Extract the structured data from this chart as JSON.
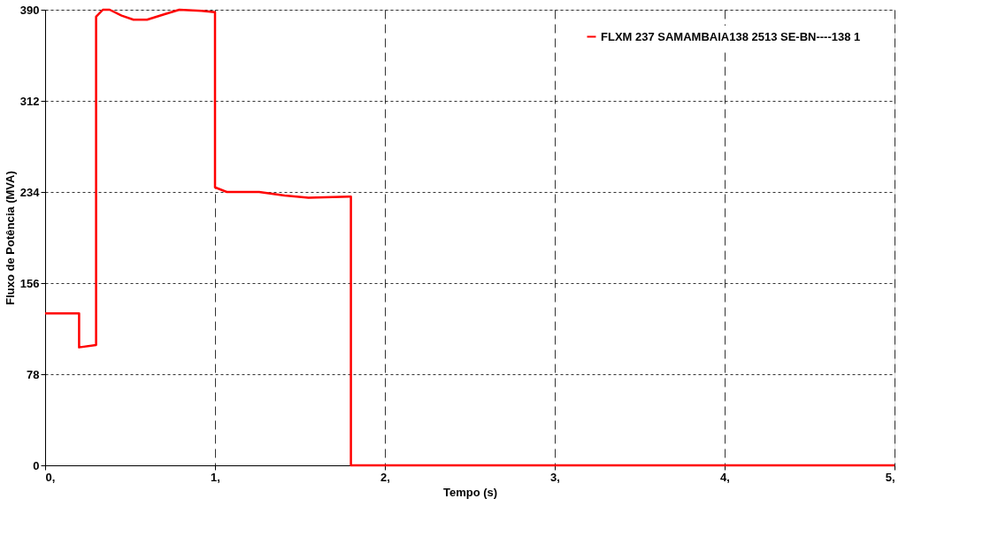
{
  "chart_data": {
    "type": "line",
    "xlabel": "Tempo (s)",
    "ylabel": "Fluxo de Potência (MVA)",
    "xlim": [
      0,
      5
    ],
    "xticks": [
      {
        "value": 0,
        "label": "0,"
      },
      {
        "value": 1,
        "label": "1,"
      },
      {
        "value": 2,
        "label": "2,"
      },
      {
        "value": 3,
        "label": "3,"
      },
      {
        "value": 4,
        "label": "4,"
      },
      {
        "value": 5,
        "label": "5,"
      }
    ],
    "ylim": [
      0,
      390
    ],
    "yticks": [
      0,
      78,
      156,
      234,
      312,
      390
    ],
    "grid": true,
    "legend": "top right",
    "marker": "none",
    "line_style": "solid",
    "series": [
      {
        "name": "FLXM    237 SAMAMBAIA138 2513 SE-BN----138  1",
        "color": "#ff0000",
        "x": [
          0,
          0.2,
          0.2,
          0.3,
          0.3,
          0.34,
          0.38,
          0.45,
          0.52,
          0.6,
          0.7,
          0.79,
          0.92,
          1.0,
          1.0,
          1.07,
          1.26,
          1.41,
          1.55,
          1.79,
          1.8,
          1.8,
          5
        ],
        "values": [
          130,
          130,
          101,
          103,
          384,
          390,
          390,
          385,
          381.5,
          381.5,
          386,
          390,
          389,
          388,
          238,
          234,
          234,
          231,
          229,
          230,
          230,
          0,
          0
        ]
      }
    ]
  }
}
